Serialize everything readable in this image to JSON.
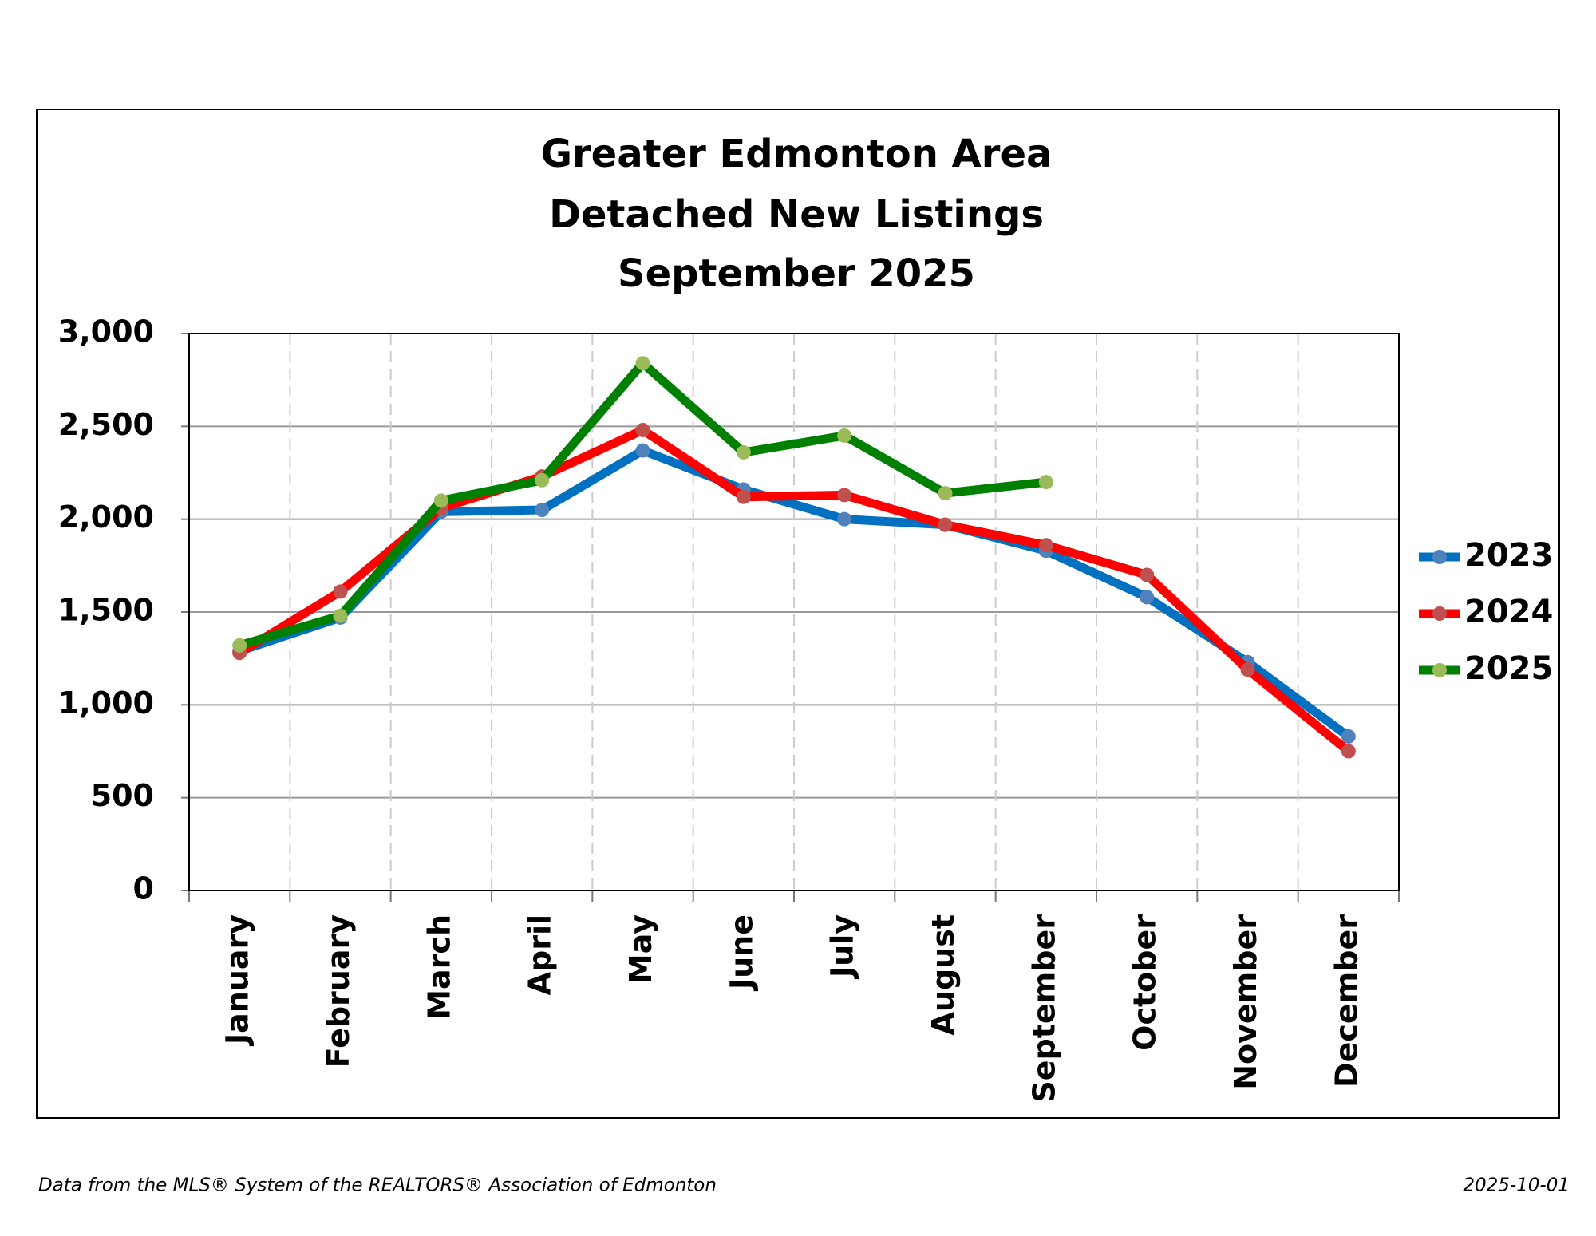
{
  "chart_data": {
    "type": "line",
    "title": [
      "Greater Edmonton Area",
      "Detached New Listings",
      "September 2025"
    ],
    "categories": [
      "January",
      "February",
      "March",
      "April",
      "May",
      "June",
      "July",
      "August",
      "September",
      "October",
      "November",
      "December"
    ],
    "series": [
      {
        "name": "2023",
        "color": "#0070c0",
        "marker_color": "#4f81bd",
        "values": [
          1290,
          1470,
          2040,
          2050,
          2370,
          2160,
          2000,
          1970,
          1830,
          1580,
          1230,
          830
        ]
      },
      {
        "name": "2024",
        "color": "#ff0000",
        "marker_color": "#c0504d",
        "values": [
          1280,
          1610,
          2060,
          2230,
          2480,
          2120,
          2130,
          1970,
          1860,
          1700,
          1190,
          750
        ]
      },
      {
        "name": "2025",
        "color": "#008000",
        "marker_color": "#9bbb59",
        "values": [
          1320,
          1480,
          2100,
          2210,
          2840,
          2360,
          2450,
          2140,
          2200,
          null,
          null,
          null
        ]
      }
    ],
    "ylim": [
      0,
      3000
    ],
    "yticks": [
      0,
      500,
      {
        "value": 1000,
        "label": "1,000"
      },
      {
        "value": 1500,
        "label": "1,500"
      },
      {
        "value": 2000,
        "label": "2,000"
      },
      {
        "value": 2500,
        "label": "2,500"
      },
      {
        "value": 3000,
        "label": "3,000"
      }
    ],
    "grid": true,
    "legend": "right"
  },
  "footer": {
    "source": "Data from the MLS® System of the REALTORS® Association of Edmonton",
    "date": "2025-10-01"
  }
}
